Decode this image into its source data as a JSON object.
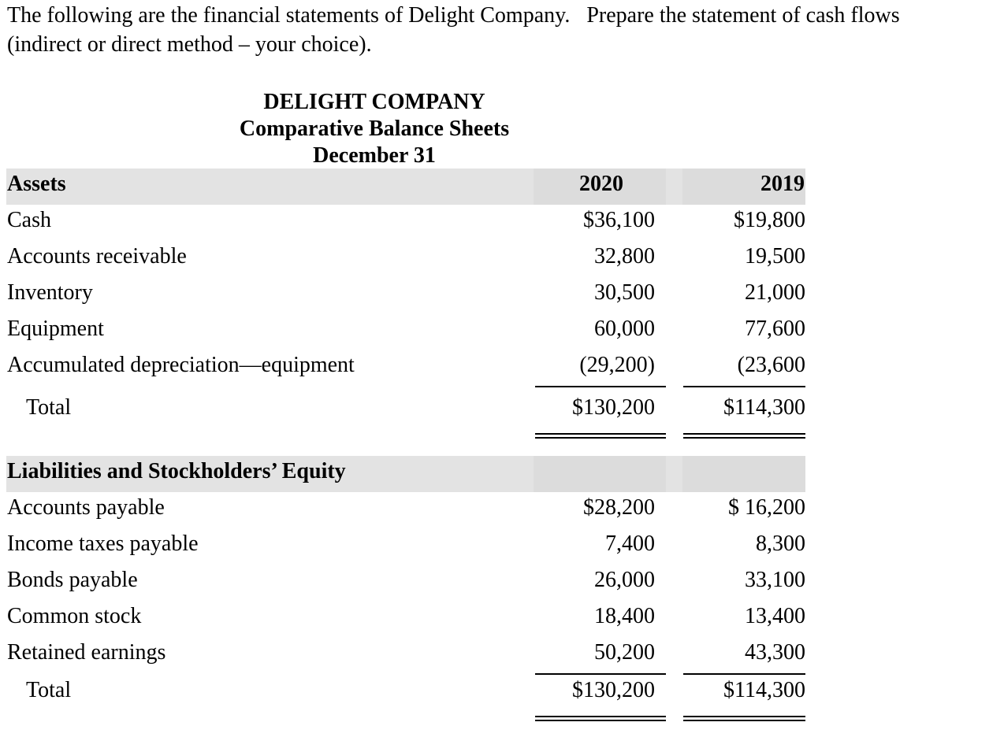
{
  "intro": [
    "The following are the financial statements of Delight Company.   Prepare the statement of cash flows",
    "(indirect or direct method – your choice)."
  ],
  "header": {
    "lines": [
      "DELIGHT COMPANY",
      "Comparative Balance Sheets",
      "December 31"
    ]
  },
  "assets": {
    "heading": "Assets",
    "columns": [
      "2020",
      "2019"
    ],
    "rows": [
      {
        "label": "Cash",
        "values": [
          "$36,100",
          "$19,800"
        ]
      },
      {
        "label": "Accounts receivable",
        "values": [
          "32,800",
          "19,500"
        ]
      },
      {
        "label": "Inventory",
        "values": [
          "30,500",
          "21,000"
        ]
      },
      {
        "label": "Equipment",
        "values": [
          "60,000",
          "77,600"
        ]
      },
      {
        "label": "Accumulated depreciation—equipment",
        "values": [
          "(29,200)",
          "(23,600"
        ]
      }
    ],
    "total": {
      "label": "Total",
      "values": [
        "$130,200",
        "$114,300"
      ]
    }
  },
  "liabilities": {
    "heading": "Liabilities and Stockholders’ Equity",
    "rows": [
      {
        "label": "Accounts payable",
        "values": [
          "$28,200",
          "$ 16,200"
        ]
      },
      {
        "label": "Income taxes payable",
        "values": [
          "7,400",
          "8,300"
        ]
      },
      {
        "label": "Bonds payable",
        "values": [
          "26,000",
          "33,100"
        ]
      },
      {
        "label": "Common stock",
        "values": [
          "18,400",
          "13,400"
        ]
      },
      {
        "label": "Retained earnings",
        "values": [
          "50,200",
          "43,300"
        ]
      }
    ],
    "total": {
      "label": "Total",
      "values": [
        "$130,200",
        "$114,300"
      ]
    }
  }
}
